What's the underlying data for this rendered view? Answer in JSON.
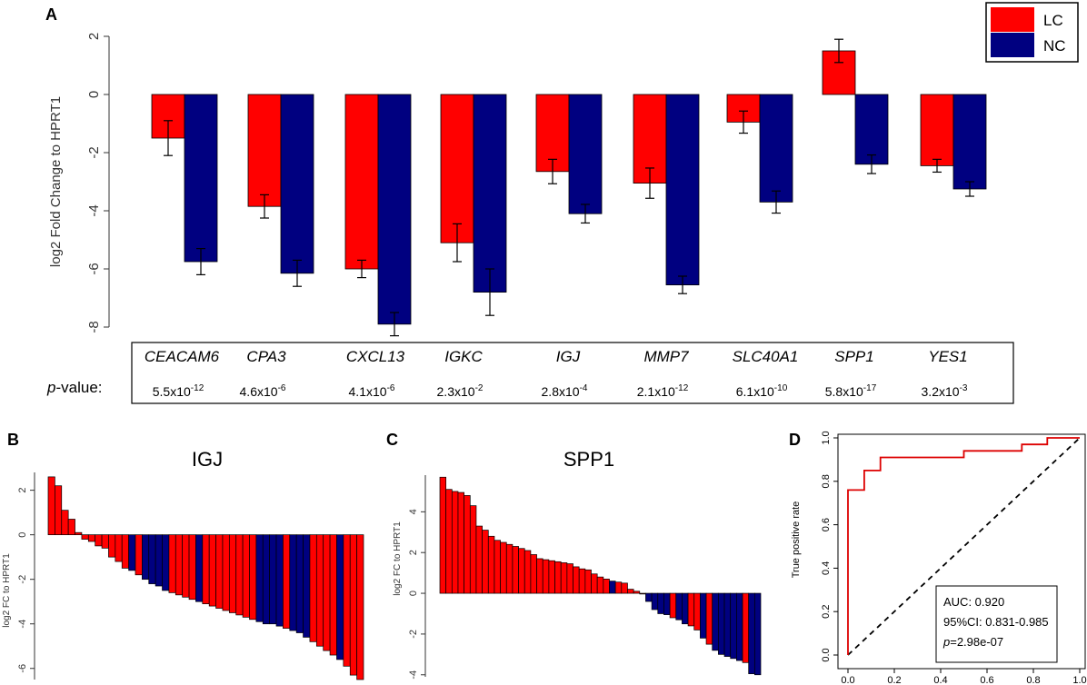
{
  "colors": {
    "lc": "#ff0000",
    "nc": "#000080",
    "axis": "#000000",
    "roc": "#dd0000"
  },
  "chart_data": [
    {
      "panel": "A",
      "type": "bar",
      "ylabel": "log2 Fold Change to HPRT1",
      "ylim": [
        -8,
        2
      ],
      "yticks": [
        "2",
        "0",
        "-2",
        "-4",
        "-6",
        "-8"
      ],
      "legend": [
        "LC",
        "NC"
      ],
      "genes": [
        "CEACAM6",
        "CPA3",
        "CXCL13",
        "IGKC",
        "IGJ",
        "MMP7",
        "SLC40A1",
        "SPP1",
        "YES1"
      ],
      "pvalue_label": "-value:",
      "pvalue_label_italic": "p",
      "pvalues": [
        {
          "m": "5.5x10",
          "e": "-12"
        },
        {
          "m": "4.6x10",
          "e": "-6"
        },
        {
          "m": "4.1x10",
          "e": "-6"
        },
        {
          "m": "2.3x10",
          "e": "-2"
        },
        {
          "m": "2.8x10",
          "e": "-4"
        },
        {
          "m": "2.1x10",
          "e": "-12"
        },
        {
          "m": "6.1x10",
          "e": "-10"
        },
        {
          "m": "5.8x10",
          "e": "-17"
        },
        {
          "m": "3.2x10",
          "e": "-3"
        }
      ],
      "series": [
        {
          "name": "LC",
          "values": [
            -1.5,
            -3.85,
            -6.0,
            -5.1,
            -2.65,
            -3.05,
            -0.95,
            1.5,
            -2.45
          ],
          "err": [
            0.6,
            0.4,
            0.3,
            0.65,
            0.42,
            0.52,
            0.38,
            0.4,
            0.22
          ]
        },
        {
          "name": "NC",
          "values": [
            -5.75,
            -6.15,
            -7.9,
            -6.8,
            -4.1,
            -6.55,
            -3.7,
            -2.4,
            -3.25
          ],
          "err": [
            0.45,
            0.45,
            0.4,
            0.8,
            0.32,
            0.3,
            0.38,
            0.32,
            0.25
          ]
        }
      ]
    },
    {
      "panel": "B",
      "type": "bar",
      "title": "IGJ",
      "ylabel": "log2 FC to HPRT1",
      "ylim": [
        -6.5,
        2.8
      ],
      "yticks": [
        "2",
        "0",
        "-2",
        "-4",
        "-6"
      ],
      "values": [
        2.6,
        2.2,
        1.1,
        0.7,
        0.1,
        -0.2,
        -0.3,
        -0.5,
        -0.6,
        -1.0,
        -1.2,
        -1.5,
        -1.6,
        -1.8,
        -2.0,
        -2.2,
        -2.3,
        -2.5,
        -2.6,
        -2.7,
        -2.8,
        -2.9,
        -3.0,
        -3.1,
        -3.2,
        -3.3,
        -3.4,
        -3.5,
        -3.6,
        -3.7,
        -3.8,
        -3.9,
        -4.0,
        -4.0,
        -4.1,
        -4.2,
        -4.3,
        -4.4,
        -4.6,
        -4.8,
        -5.0,
        -5.2,
        -5.4,
        -5.6,
        -5.9,
        -6.3,
        -6.5
      ],
      "groups": [
        "LC",
        "LC",
        "LC",
        "LC",
        "LC",
        "LC",
        "LC",
        "LC",
        "LC",
        "LC",
        "LC",
        "LC",
        "NC",
        "LC",
        "NC",
        "NC",
        "NC",
        "NC",
        "LC",
        "LC",
        "LC",
        "LC",
        "NC",
        "LC",
        "LC",
        "LC",
        "LC",
        "LC",
        "LC",
        "LC",
        "LC",
        "NC",
        "NC",
        "NC",
        "NC",
        "LC",
        "NC",
        "NC",
        "NC",
        "LC",
        "LC",
        "LC",
        "LC",
        "NC",
        "LC",
        "LC",
        "LC"
      ]
    },
    {
      "panel": "C",
      "type": "bar",
      "title": "SPP1",
      "ylabel": "log2 FC to HPRT1",
      "ylim": [
        -4.1,
        5.8
      ],
      "yticks": [
        "4",
        "2",
        "0",
        "-2",
        "-4"
      ],
      "values": [
        5.7,
        5.1,
        5.0,
        4.95,
        4.8,
        4.3,
        3.3,
        3.1,
        2.8,
        2.6,
        2.5,
        2.4,
        2.3,
        2.2,
        2.1,
        1.9,
        1.7,
        1.65,
        1.6,
        1.55,
        1.5,
        1.45,
        1.3,
        1.2,
        1.15,
        0.95,
        0.8,
        0.7,
        0.6,
        0.55,
        0.5,
        0.2,
        0.1,
        0.0,
        -0.4,
        -0.8,
        -1.0,
        -1.05,
        -1.2,
        -1.3,
        -1.5,
        -1.6,
        -1.8,
        -2.2,
        -2.5,
        -2.8,
        -3.0,
        -3.1,
        -3.2,
        -3.3,
        -3.4,
        -3.95,
        -4.0
      ],
      "groups": [
        "LC",
        "LC",
        "LC",
        "LC",
        "LC",
        "LC",
        "LC",
        "LC",
        "LC",
        "LC",
        "LC",
        "LC",
        "LC",
        "LC",
        "LC",
        "LC",
        "LC",
        "LC",
        "LC",
        "LC",
        "LC",
        "LC",
        "LC",
        "LC",
        "LC",
        "LC",
        "LC",
        "LC",
        "NC",
        "LC",
        "LC",
        "LC",
        "LC",
        "LC",
        "NC",
        "NC",
        "NC",
        "NC",
        "LC",
        "NC",
        "NC",
        "LC",
        "LC",
        "NC",
        "LC",
        "NC",
        "NC",
        "NC",
        "NC",
        "NC",
        "LC",
        "NC",
        "NC"
      ]
    },
    {
      "panel": "D",
      "type": "line",
      "ylabel": "True positive rate",
      "xlim": [
        0,
        1
      ],
      "ylim": [
        0,
        1
      ],
      "xticks": [
        "0.0",
        "0.2",
        "0.4",
        "0.6",
        "0.8",
        "1.0"
      ],
      "yticks": [
        "0.0",
        "0.2",
        "0.4",
        "0.6",
        "0.8",
        "1.0"
      ],
      "roc_x": [
        0,
        0,
        0,
        0.07,
        0.07,
        0.1,
        0.1,
        0.14,
        0.14,
        0.5,
        0.5,
        0.75,
        0.75,
        0.86,
        0.86,
        1.0
      ],
      "roc_y": [
        0,
        0.76,
        0.76,
        0.76,
        0.85,
        0.85,
        0.85,
        0.85,
        0.91,
        0.91,
        0.94,
        0.94,
        0.97,
        0.97,
        1.0,
        1.0
      ],
      "stats": {
        "auc": "AUC: 0.920",
        "ci": "95%CI: 0.831-0.985",
        "p_italic": "p",
        "p_value": "=2.98e-07"
      }
    }
  ],
  "panel_labels": [
    "A",
    "B",
    "C",
    "D"
  ]
}
